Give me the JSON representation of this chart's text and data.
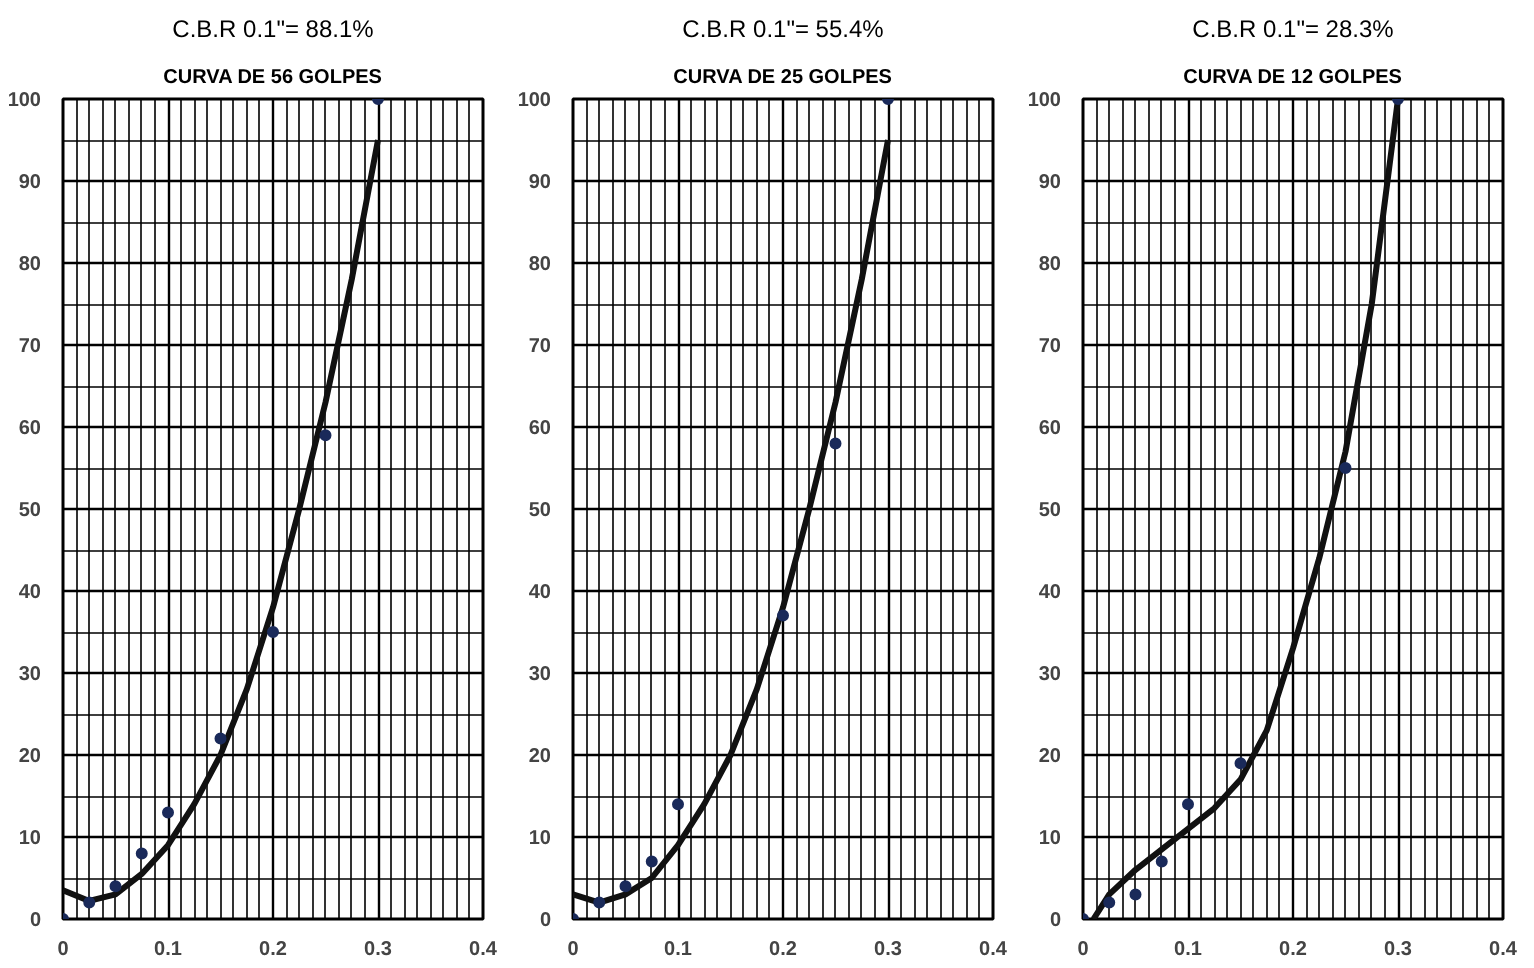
{
  "chart_data": [
    {
      "type": "scatter",
      "title": "C.B.R 0.1\"= 88.1%",
      "subtitle": "CURVA DE 56 GOLPES",
      "xlim": [
        0,
        0.4
      ],
      "ylim": [
        0,
        100
      ],
      "xticks": [
        0,
        0.1,
        0.2,
        0.3,
        0.4
      ],
      "yticks": [
        0,
        10,
        20,
        30,
        40,
        50,
        60,
        70,
        80,
        90,
        100
      ],
      "grid": true,
      "series": [
        {
          "marker": "circle",
          "color": "#1a2a5a",
          "x": [
            0,
            0.025,
            0.05,
            0.075,
            0.1,
            0.15,
            0.2,
            0.25,
            0.3
          ],
          "values": [
            0,
            2,
            4,
            8,
            13,
            22,
            35,
            59,
            100
          ]
        },
        {
          "type": "line",
          "color": "#111111",
          "line_style": "solid",
          "x": [
            0,
            0.025,
            0.05,
            0.075,
            0.1,
            0.125,
            0.15,
            0.175,
            0.2,
            0.225,
            0.25,
            0.275,
            0.3
          ],
          "values": [
            3.5,
            2.2,
            3,
            5.5,
            9,
            14,
            20,
            28,
            38,
            50,
            63,
            78,
            95
          ]
        }
      ]
    },
    {
      "type": "scatter",
      "title": "C.B.R 0.1\"= 55.4%",
      "subtitle": "CURVA DE 25 GOLPES",
      "xlim": [
        0,
        0.4
      ],
      "ylim": [
        0,
        100
      ],
      "xticks": [
        0,
        0.1,
        0.2,
        0.3,
        0.4
      ],
      "yticks": [
        0,
        10,
        20,
        30,
        40,
        50,
        60,
        70,
        80,
        90,
        100
      ],
      "grid": true,
      "series": [
        {
          "marker": "circle",
          "color": "#1a2a5a",
          "x": [
            0,
            0.025,
            0.05,
            0.075,
            0.1,
            0.2,
            0.25,
            0.3
          ],
          "values": [
            0,
            2,
            4,
            7,
            14,
            37,
            58,
            100
          ]
        },
        {
          "type": "line",
          "color": "#111111",
          "line_style": "solid",
          "x": [
            0,
            0.025,
            0.05,
            0.075,
            0.1,
            0.125,
            0.15,
            0.175,
            0.2,
            0.225,
            0.25,
            0.275,
            0.3
          ],
          "values": [
            3,
            2,
            3,
            5,
            9,
            14,
            20,
            28,
            38,
            50,
            63,
            78,
            95
          ]
        }
      ]
    },
    {
      "type": "scatter",
      "title": "C.B.R 0.1\"= 28.3%",
      "subtitle": "CURVA DE 12 GOLPES",
      "xlim": [
        0,
        0.4
      ],
      "ylim": [
        0,
        100
      ],
      "xticks": [
        0,
        0.1,
        0.2,
        0.3,
        0.4
      ],
      "yticks": [
        0,
        10,
        20,
        30,
        40,
        50,
        60,
        70,
        80,
        90,
        100
      ],
      "grid": true,
      "series": [
        {
          "marker": "circle",
          "color": "#1a2a5a",
          "x": [
            0,
            0.025,
            0.05,
            0.075,
            0.1,
            0.15,
            0.25,
            0.3
          ],
          "values": [
            0,
            2,
            3,
            7,
            14,
            19,
            55,
            100
          ]
        },
        {
          "type": "line",
          "color": "#111111",
          "line_style": "solid",
          "x": [
            0.01,
            0.025,
            0.05,
            0.075,
            0.1,
            0.125,
            0.15,
            0.175,
            0.2,
            0.225,
            0.25,
            0.275,
            0.3
          ],
          "values": [
            0,
            3,
            6,
            8.5,
            11,
            13.5,
            17,
            23,
            33,
            44,
            57,
            75,
            100
          ]
        }
      ]
    }
  ]
}
